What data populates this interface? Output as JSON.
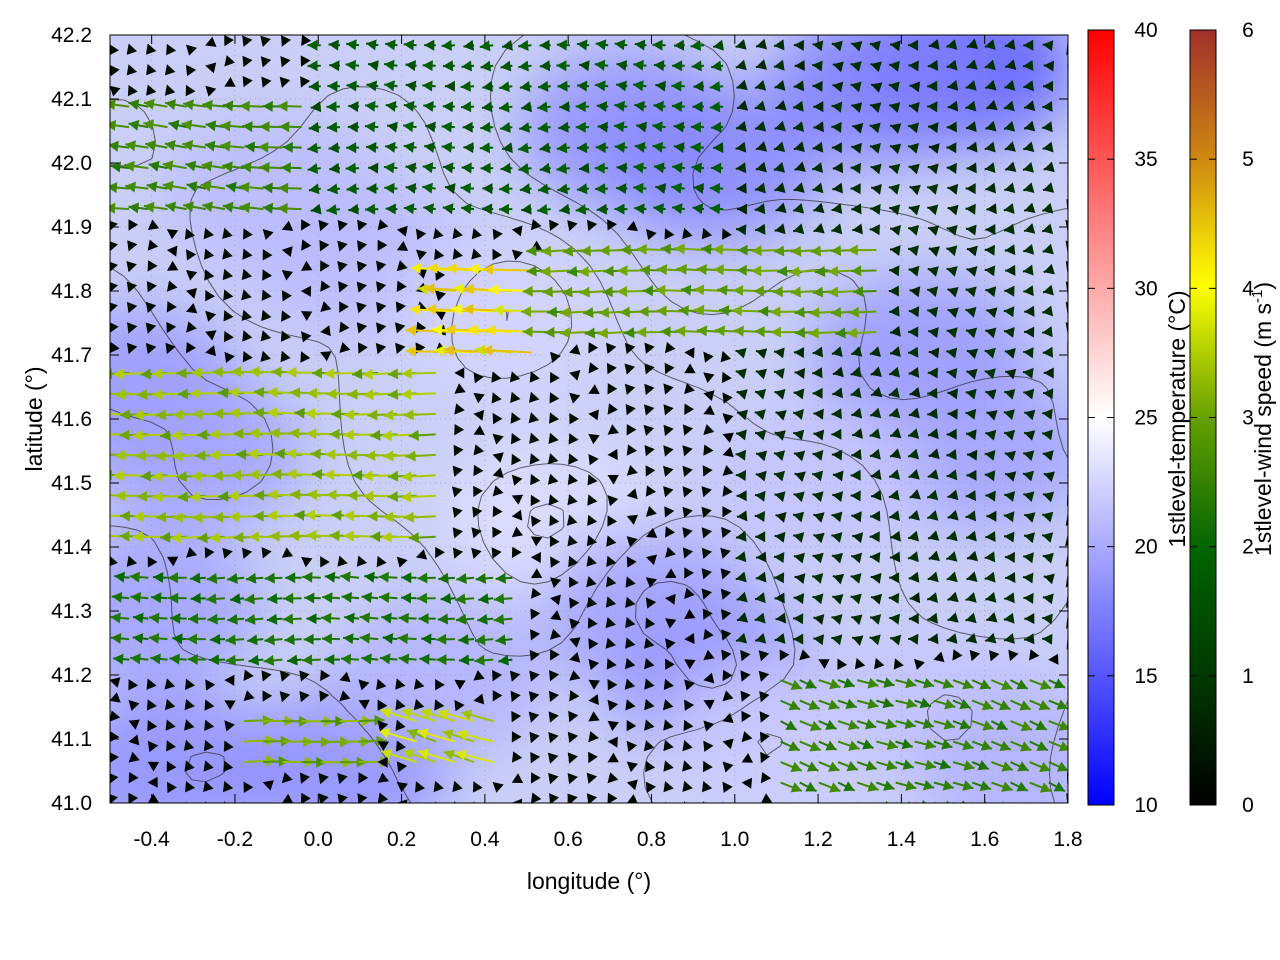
{
  "chart_data": {
    "type": "heatmap",
    "overlays": [
      "contour",
      "vector-field"
    ],
    "title": "",
    "xlabel": "longitude (°)",
    "ylabel": "latitude (°)",
    "xlim": [
      -0.5,
      1.8
    ],
    "ylim": [
      41.0,
      42.2
    ],
    "xticks": [
      -0.4,
      -0.2,
      0.0,
      0.2,
      0.4,
      0.6,
      0.8,
      1.0,
      1.2,
      1.4,
      1.6,
      1.8
    ],
    "xtick_labels": [
      "-0.4",
      "-0.2",
      "0.0",
      "0.2",
      "0.4",
      "0.6",
      "0.8",
      "1.0",
      "1.2",
      "1.4",
      "1.6",
      "1.8"
    ],
    "yticks": [
      41.0,
      41.1,
      41.2,
      41.3,
      41.4,
      41.5,
      41.6,
      41.7,
      41.8,
      41.9,
      42.0,
      42.1,
      42.2
    ],
    "ytick_labels": [
      "41.0",
      "41.1",
      "41.2",
      "41.3",
      "41.4",
      "41.5",
      "41.6",
      "41.7",
      "41.8",
      "41.9",
      "42.0",
      "42.1",
      "42.2"
    ],
    "grid": true,
    "temperature_colorbar": {
      "label": "1stlevel-temperature (°C)",
      "range": [
        10,
        40
      ],
      "ticks": [
        10,
        15,
        20,
        25,
        30,
        35,
        40
      ],
      "tick_labels": [
        "10",
        "15",
        "20",
        "25",
        "30",
        "35",
        "40"
      ],
      "colors": [
        "#0000ff",
        "#ffffff",
        "#ff0000"
      ]
    },
    "wind_colorbar": {
      "label_main": "1stlevel-wind speed (m s",
      "label_sup": "-1",
      "label_end": ")",
      "range": [
        0,
        6
      ],
      "ticks": [
        0,
        1,
        2,
        3,
        4,
        5,
        6
      ],
      "tick_labels": [
        "0",
        "1",
        "2",
        "3",
        "4",
        "5",
        "6"
      ],
      "colors": [
        "#000000",
        "#006400",
        "#66a000",
        "#ffff00",
        "#d08a10",
        "#a0302a"
      ]
    },
    "temperature_cells": [
      {
        "lon": -0.45,
        "lat": 41.65,
        "t": 19.0
      },
      {
        "lon": -0.3,
        "lat": 41.55,
        "t": 19.5
      },
      {
        "lon": -0.4,
        "lat": 41.3,
        "t": 19.5
      },
      {
        "lon": -0.35,
        "lat": 41.05,
        "t": 18.5
      },
      {
        "lon": 0.05,
        "lat": 41.05,
        "t": 18.5
      },
      {
        "lon": 0.1,
        "lat": 41.85,
        "t": 21.0
      },
      {
        "lon": 0.45,
        "lat": 41.75,
        "t": 22.5
      },
      {
        "lon": 0.55,
        "lat": 41.45,
        "t": 23.0
      },
      {
        "lon": 0.8,
        "lat": 41.3,
        "t": 19.5
      },
      {
        "lon": 0.95,
        "lat": 41.2,
        "t": 19.0
      },
      {
        "lon": 0.75,
        "lat": 42.05,
        "t": 18.5
      },
      {
        "lon": 0.95,
        "lat": 42.0,
        "t": 18.0
      },
      {
        "lon": 1.55,
        "lat": 42.15,
        "t": 15.5
      },
      {
        "lon": 1.35,
        "lat": 42.12,
        "t": 17.5
      },
      {
        "lon": 1.45,
        "lat": 41.7,
        "t": 19.0
      },
      {
        "lon": 1.6,
        "lat": 41.55,
        "t": 19.5
      },
      {
        "lon": 1.2,
        "lat": 41.5,
        "t": 21.5
      },
      {
        "lon": 1.1,
        "lat": 41.1,
        "t": 22.0
      },
      {
        "lon": 1.5,
        "lat": 41.15,
        "t": 21.5
      },
      {
        "lon": 1.7,
        "lat": 41.05,
        "t": 20.5
      },
      {
        "lon": 0.3,
        "lat": 41.2,
        "t": 20.5
      },
      {
        "lon": -0.1,
        "lat": 41.95,
        "t": 21.0
      }
    ],
    "wind_regions": [
      {
        "lon": [
          -0.5,
          0.3
        ],
        "lat": [
          41.4,
          41.68
        ],
        "u": -2.6,
        "v": 0.0
      },
      {
        "lon": [
          -0.1,
          0.15
        ],
        "lat": [
          41.45,
          41.55
        ],
        "u": -3.8,
        "v": 0.1
      },
      {
        "lon": [
          0.3,
          0.55
        ],
        "lat": [
          41.7,
          41.85
        ],
        "u": -3.7,
        "v": 0.1
      },
      {
        "lon": [
          0.55,
          1.35
        ],
        "lat": [
          41.72,
          41.88
        ],
        "u": -2.2,
        "v": 0.0
      },
      {
        "lon": [
          -0.5,
          0.0
        ],
        "lat": [
          41.9,
          42.1
        ],
        "u": -1.8,
        "v": 0.2
      },
      {
        "lon": [
          -0.2,
          0.1
        ],
        "lat": [
          41.05,
          41.15
        ],
        "u": 2.4,
        "v": 0.1
      },
      {
        "lon": [
          0.2,
          0.45
        ],
        "lat": [
          41.05,
          41.15
        ],
        "u": -2.8,
        "v": 0.8
      },
      {
        "lon": [
          1.1,
          1.8
        ],
        "lat": [
          41.0,
          41.2
        ],
        "u": 1.6,
        "v": -0.6
      },
      {
        "lon": [
          -0.5,
          0.5
        ],
        "lat": [
          41.2,
          41.38
        ],
        "u": -1.4,
        "v": 0.0
      },
      {
        "lon": [
          0.0,
          1.0
        ],
        "lat": [
          41.9,
          42.2
        ],
        "u": -1.0,
        "v": 0.0
      },
      {
        "lon": [
          1.0,
          1.8
        ],
        "lat": [
          41.25,
          42.2
        ],
        "u": -0.5,
        "v": 0.0
      }
    ]
  }
}
